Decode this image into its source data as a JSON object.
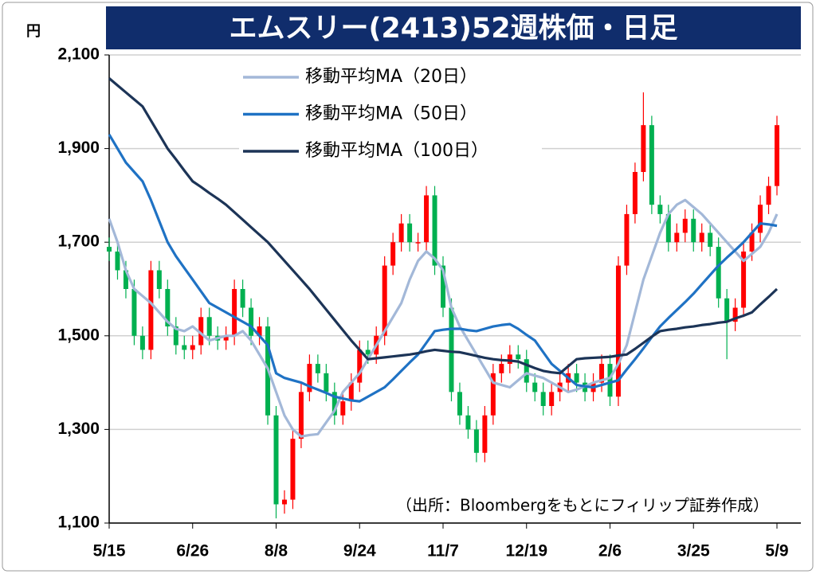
{
  "chart_data": {
    "type": "candlestick",
    "title": "エムスリー(2413)52週株価・日足",
    "y_unit": "円",
    "note": "（出所：Bloombergをもとにフィリップ証券作成）",
    "categories": [
      "5/15",
      null,
      null,
      null,
      null,
      null,
      null,
      null,
      null,
      null,
      "6/26",
      null,
      null,
      null,
      null,
      null,
      null,
      null,
      null,
      null,
      "8/8",
      null,
      null,
      null,
      null,
      null,
      null,
      null,
      null,
      null,
      "9/24",
      null,
      null,
      null,
      null,
      null,
      null,
      null,
      null,
      null,
      "11/7",
      null,
      null,
      null,
      null,
      null,
      null,
      null,
      null,
      null,
      "12/19",
      null,
      null,
      null,
      null,
      null,
      null,
      null,
      null,
      null,
      "2/6",
      null,
      null,
      null,
      null,
      null,
      null,
      null,
      null,
      null,
      "3/25",
      null,
      null,
      null,
      null,
      null,
      null,
      null,
      null,
      null,
      "5/9"
    ],
    "candles": {
      "open": [
        1690,
        1680,
        1640,
        1600,
        1500,
        1470,
        1640,
        1600,
        1520,
        1480,
        1470,
        1480,
        1540,
        1500,
        1490,
        1500,
        1600,
        1560,
        1500,
        1520,
        1330,
        1140,
        1150,
        1280,
        1380,
        1440,
        1420,
        1380,
        1330,
        1360,
        1400,
        1470,
        1460,
        1500,
        1650,
        1700,
        1740,
        1700,
        1700,
        1800,
        1650,
        1560,
        1380,
        1330,
        1300,
        1250,
        1330,
        1420,
        1440,
        1460,
        1450,
        1400,
        1380,
        1350,
        1380,
        1400,
        1420,
        1400,
        1380,
        1400,
        1440,
        1370,
        1650,
        1760,
        1850,
        1950,
        1780,
        1760,
        1700,
        1720,
        1750,
        1700,
        1720,
        1690,
        1580,
        1530,
        1560,
        1680,
        1720,
        1780,
        1820
      ],
      "high": [
        1710,
        1700,
        1660,
        1620,
        1520,
        1660,
        1660,
        1620,
        1540,
        1500,
        1500,
        1560,
        1560,
        1520,
        1520,
        1620,
        1620,
        1580,
        1540,
        1540,
        1350,
        1170,
        1300,
        1400,
        1460,
        1460,
        1440,
        1400,
        1380,
        1420,
        1490,
        1490,
        1520,
        1670,
        1720,
        1760,
        1760,
        1720,
        1820,
        1820,
        1670,
        1580,
        1400,
        1350,
        1320,
        1350,
        1440,
        1460,
        1480,
        1480,
        1470,
        1420,
        1400,
        1400,
        1420,
        1440,
        1440,
        1420,
        1420,
        1460,
        1460,
        1670,
        1780,
        1870,
        2020,
        1970,
        1800,
        1780,
        1740,
        1770,
        1770,
        1740,
        1740,
        1710,
        1600,
        1580,
        1700,
        1740,
        1800,
        1840,
        1970
      ],
      "low": [
        1660,
        1620,
        1580,
        1480,
        1450,
        1450,
        1580,
        1500,
        1460,
        1450,
        1450,
        1460,
        1480,
        1470,
        1470,
        1480,
        1540,
        1480,
        1480,
        1310,
        1110,
        1120,
        1130,
        1260,
        1360,
        1400,
        1360,
        1310,
        1310,
        1340,
        1380,
        1440,
        1440,
        1480,
        1630,
        1680,
        1680,
        1680,
        1680,
        1630,
        1540,
        1360,
        1310,
        1280,
        1230,
        1230,
        1310,
        1400,
        1420,
        1430,
        1380,
        1360,
        1330,
        1330,
        1360,
        1380,
        1380,
        1360,
        1360,
        1380,
        1350,
        1350,
        1630,
        1740,
        1830,
        1760,
        1740,
        1680,
        1680,
        1700,
        1680,
        1680,
        1670,
        1560,
        1450,
        1510,
        1540,
        1660,
        1700,
        1760,
        1800
      ],
      "close": [
        1680,
        1640,
        1600,
        1500,
        1470,
        1640,
        1600,
        1520,
        1480,
        1470,
        1480,
        1540,
        1500,
        1490,
        1500,
        1600,
        1560,
        1500,
        1520,
        1330,
        1140,
        1150,
        1280,
        1380,
        1440,
        1420,
        1380,
        1330,
        1360,
        1400,
        1470,
        1460,
        1500,
        1650,
        1700,
        1740,
        1700,
        1700,
        1800,
        1650,
        1560,
        1380,
        1330,
        1300,
        1250,
        1330,
        1420,
        1440,
        1460,
        1450,
        1400,
        1380,
        1350,
        1380,
        1400,
        1420,
        1400,
        1380,
        1400,
        1440,
        1370,
        1650,
        1760,
        1850,
        1950,
        1780,
        1760,
        1700,
        1720,
        1750,
        1700,
        1720,
        1690,
        1580,
        1530,
        1560,
        1680,
        1720,
        1780,
        1820,
        1950
      ],
      "up_color": "#ff0000",
      "down_color": "#00b050"
    },
    "series": [
      {
        "name": "移動平均MA（20日）",
        "color": "#a3b8d8",
        "values": [
          1750,
          1700,
          1640,
          1600,
          1585,
          1570,
          1550,
          1530,
          1515,
          1510,
          1520,
          1505,
          1490,
          1495,
          1500,
          1500,
          1510,
          1490,
          1460,
          1430,
          1380,
          1330,
          1300,
          1285,
          1288,
          1290,
          1315,
          1340,
          1380,
          1400,
          1420,
          1450,
          1480,
          1510,
          1540,
          1570,
          1620,
          1660,
          1680,
          1665,
          1640,
          1560,
          1520,
          1490,
          1460,
          1430,
          1400,
          1395,
          1390,
          1405,
          1420,
          1415,
          1410,
          1400,
          1390,
          1380,
          1385,
          1392,
          1400,
          1405,
          1410,
          1440,
          1480,
          1550,
          1620,
          1670,
          1720,
          1760,
          1780,
          1790,
          1775,
          1760,
          1740,
          1720,
          1700,
          1680,
          1660,
          1675,
          1690,
          1720,
          1760
        ]
      },
      {
        "name": "移動平均MA（50日）",
        "color": "#1f72c4",
        "values": [
          1930,
          1900,
          1870,
          1850,
          1830,
          1790,
          1745,
          1700,
          1670,
          1645,
          1620,
          1595,
          1570,
          1560,
          1550,
          1540,
          1530,
          1520,
          1500,
          1480,
          1420,
          1410,
          1405,
          1400,
          1392,
          1385,
          1378,
          1370,
          1366,
          1362,
          1360,
          1370,
          1380,
          1390,
          1407,
          1425,
          1443,
          1460,
          1485,
          1510,
          1513,
          1515,
          1515,
          1512,
          1510,
          1515,
          1520,
          1523,
          1525,
          1515,
          1502,
          1490,
          1465,
          1440,
          1425,
          1410,
          1395,
          1392,
          1390,
          1395,
          1400,
          1405,
          1428,
          1450,
          1473,
          1497,
          1520,
          1538,
          1555,
          1572,
          1590,
          1610,
          1630,
          1650,
          1667,
          1683,
          1700,
          1720,
          1740,
          1738,
          1735
        ]
      },
      {
        "name": "移動平均MA（100日）",
        "color": "#1c3457",
        "values": [
          2050,
          2035,
          2020,
          2005,
          1990,
          1960,
          1930,
          1900,
          1877,
          1853,
          1830,
          1818,
          1805,
          1793,
          1780,
          1764,
          1748,
          1732,
          1716,
          1700,
          1680,
          1660,
          1640,
          1620,
          1600,
          1578,
          1556,
          1534,
          1512,
          1490,
          1470,
          1450,
          1452,
          1454,
          1456,
          1458,
          1460,
          1463,
          1467,
          1470,
          1468,
          1466,
          1465,
          1461,
          1457,
          1453,
          1450,
          1448,
          1447,
          1445,
          1438,
          1431,
          1425,
          1422,
          1420,
          1435,
          1450,
          1452,
          1453,
          1454,
          1455,
          1458,
          1460,
          1472,
          1485,
          1498,
          1510,
          1513,
          1515,
          1518,
          1520,
          1523,
          1525,
          1528,
          1530,
          1537,
          1543,
          1550,
          1567,
          1583,
          1600
        ]
      }
    ],
    "ylim": [
      1100,
      2100
    ],
    "yticks": [
      {
        "value": 1100,
        "label": "1,100"
      },
      {
        "value": 1300,
        "label": "1,300"
      },
      {
        "value": 1500,
        "label": "1,500"
      },
      {
        "value": 1700,
        "label": "1,700"
      },
      {
        "value": 1900,
        "label": "1,900"
      },
      {
        "value": 2100,
        "label": "2,100"
      }
    ],
    "grid": true
  }
}
